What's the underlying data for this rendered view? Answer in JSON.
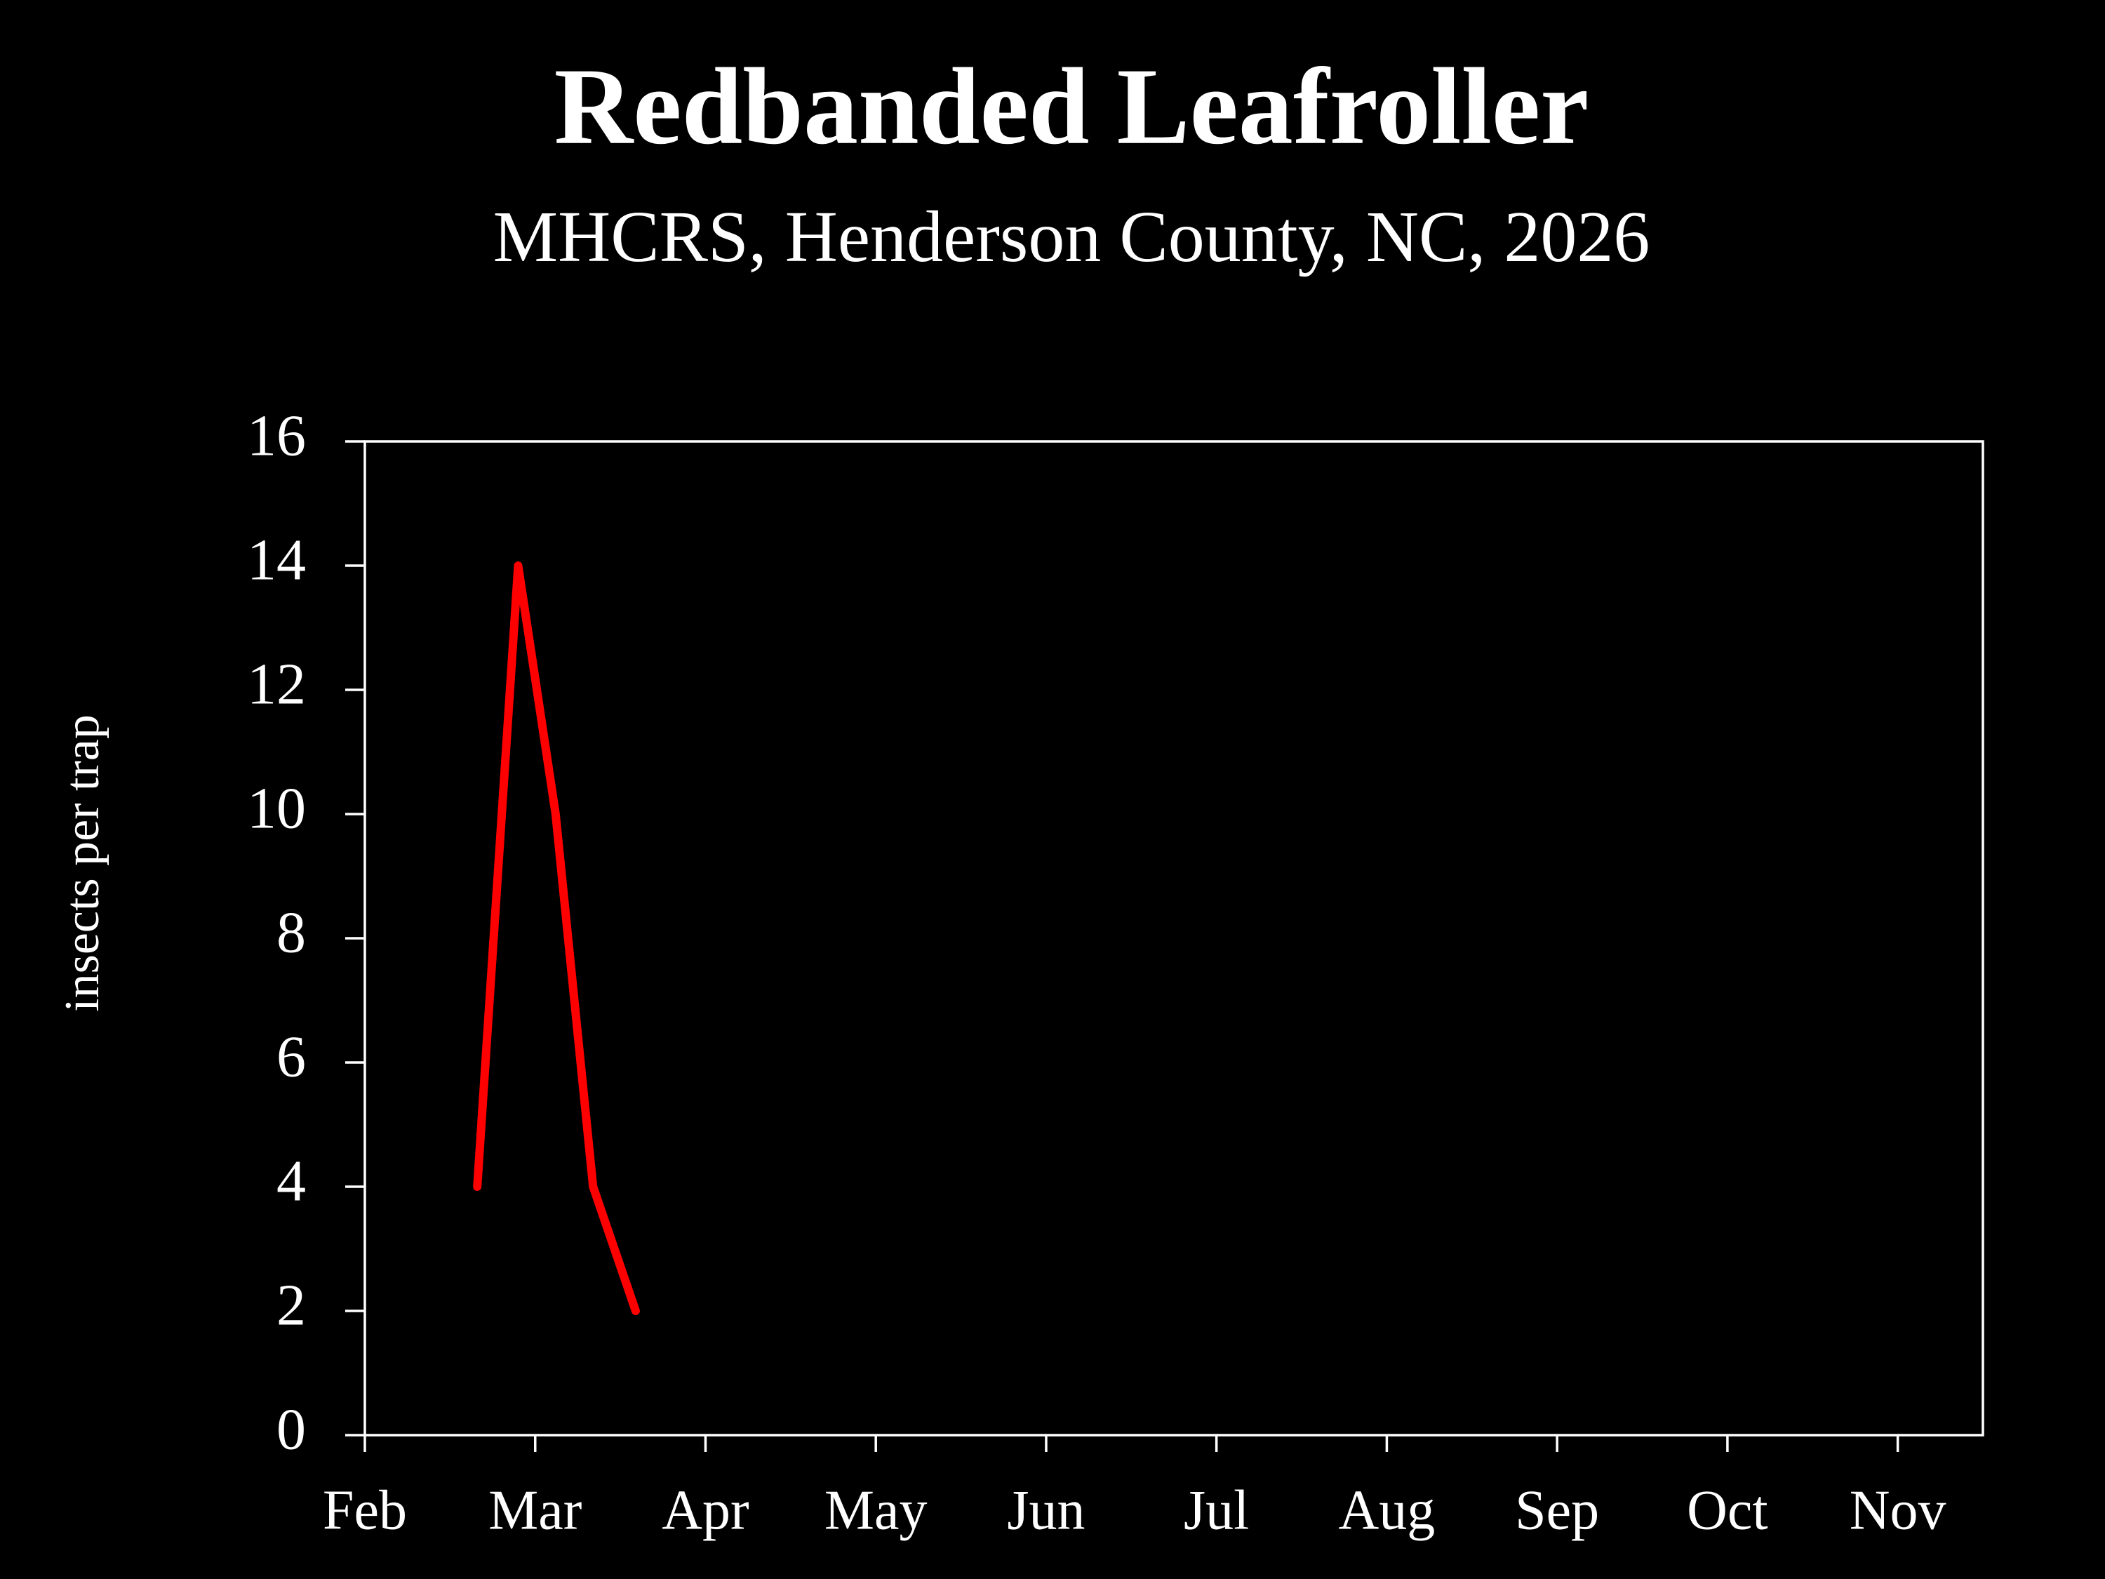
{
  "chart_data": {
    "type": "line",
    "title": "Redbanded Leafroller",
    "subtitle": "MHCRS, Henderson County, NC, 2026",
    "ylabel": "insects per trap",
    "x": [
      0.66,
      0.9,
      1.12,
      1.34,
      1.59
    ],
    "series": [
      {
        "color": "#ff0000",
        "values": [
          4,
          14,
          10,
          4,
          2
        ]
      }
    ],
    "xlim": [
      0,
      9.5
    ],
    "xticks": [
      {
        "value": 0,
        "label": "Feb"
      },
      {
        "value": 1,
        "label": "Mar"
      },
      {
        "value": 2,
        "label": "Apr"
      },
      {
        "value": 3,
        "label": "May"
      },
      {
        "value": 4,
        "label": "Jun"
      },
      {
        "value": 5,
        "label": "Jul"
      },
      {
        "value": 6,
        "label": "Aug"
      },
      {
        "value": 7,
        "label": "Sep"
      },
      {
        "value": 8,
        "label": "Oct"
      },
      {
        "value": 9,
        "label": "Nov"
      }
    ],
    "ylim": [
      0,
      16
    ],
    "yticks": [
      0,
      2,
      4,
      6,
      8,
      10,
      12,
      14,
      16
    ]
  }
}
